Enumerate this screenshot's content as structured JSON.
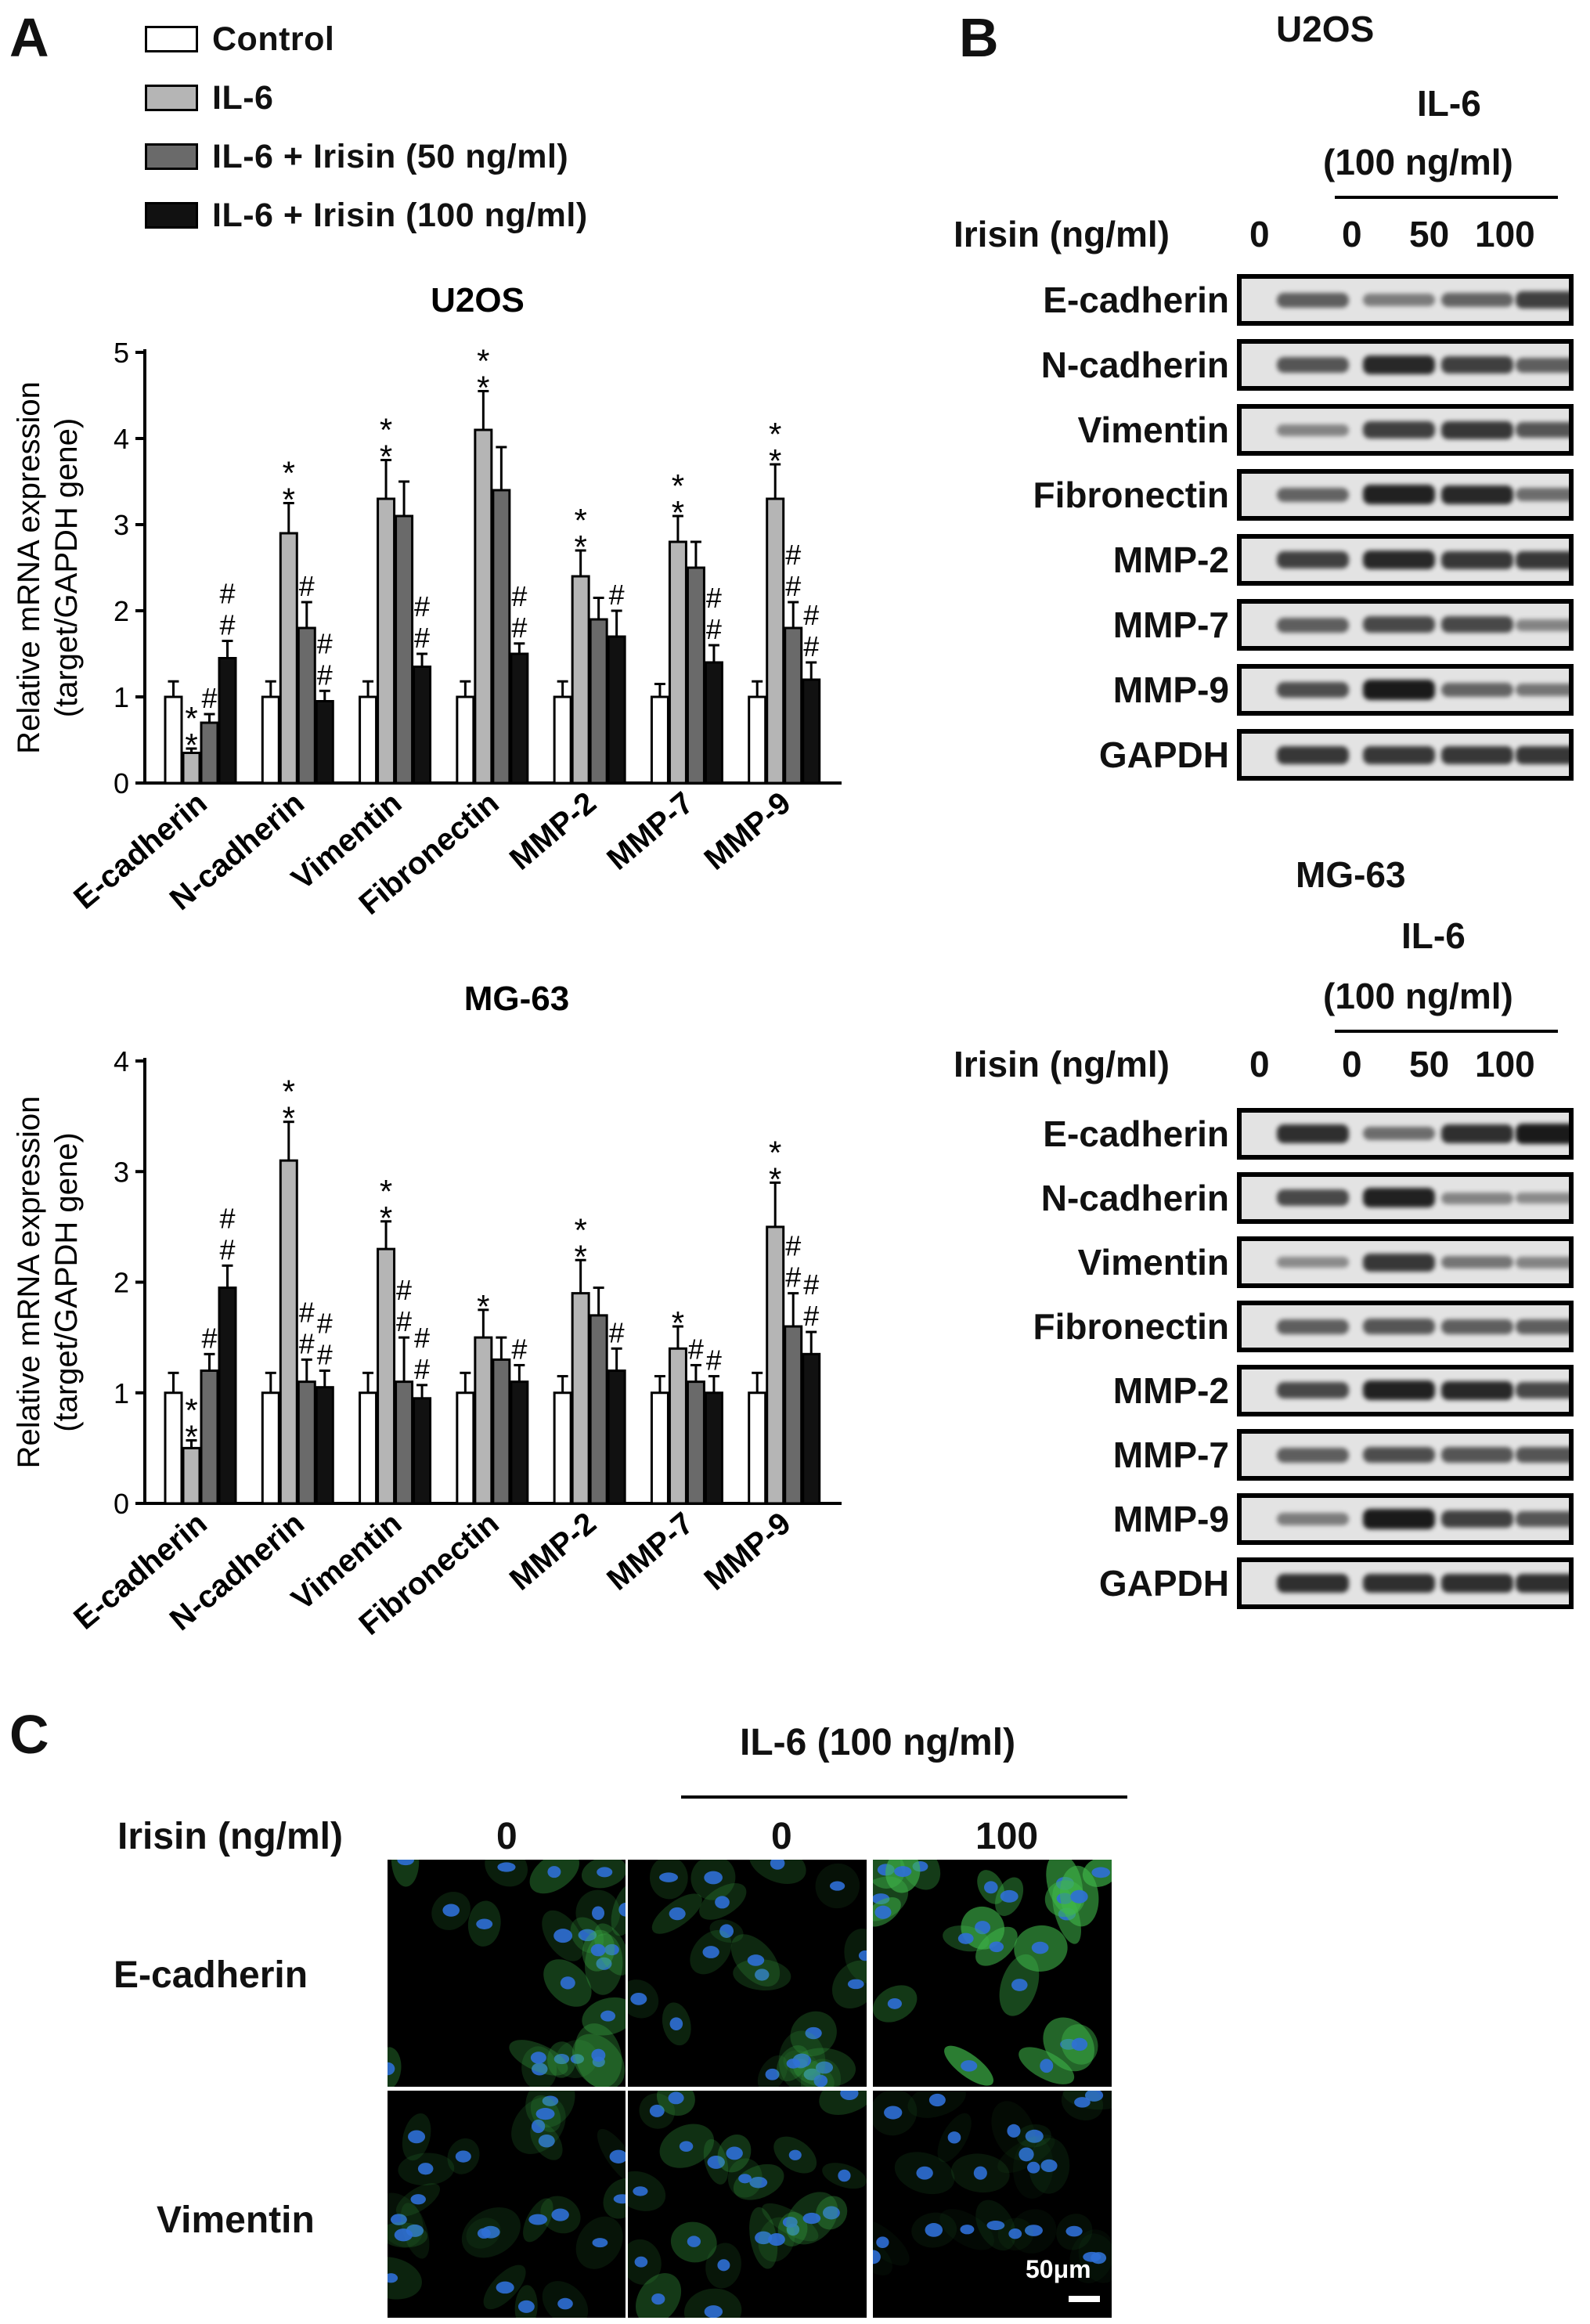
{
  "panels": {
    "a": "A",
    "b": "B",
    "c": "C"
  },
  "legend": [
    {
      "label": "Control",
      "color": "#ffffff"
    },
    {
      "label": "IL-6",
      "color": "#b5b5b5"
    },
    {
      "label": "IL-6 + Irisin  (50 ng/ml)",
      "color": "#6a6a6a"
    },
    {
      "label": "IL-6 + Irisin  (100 ng/ml)",
      "color": "#111111"
    }
  ],
  "chart_data": [
    {
      "type": "bar",
      "title": "U2OS",
      "ylabel": "Relative mRNA expression\n(target/GAPDH gene)",
      "ylabel_lines": [
        "Relative mRNA expression",
        "(target/GAPDH gene)"
      ],
      "ylim": [
        0,
        5
      ],
      "yticks": [
        "0",
        "1",
        "2",
        "3",
        "4",
        "5"
      ],
      "categories": [
        "E-cadherin",
        "N-cadherin",
        "Vimentin",
        "Fibronectin",
        "MMP-2",
        "MMP-7",
        "MMP-9"
      ],
      "series": [
        {
          "name": "Control",
          "values": [
            1.0,
            1.0,
            1.0,
            1.0,
            1.0,
            1.0,
            1.0
          ],
          "err": [
            0.18,
            0.18,
            0.18,
            0.18,
            0.18,
            0.15,
            0.18
          ]
        },
        {
          "name": "IL-6",
          "values": [
            0.35,
            2.9,
            3.3,
            4.1,
            2.4,
            2.8,
            3.3
          ],
          "err": [
            0.05,
            0.35,
            0.45,
            0.45,
            0.3,
            0.3,
            0.4
          ]
        },
        {
          "name": "IL-6 + Irisin  (50 ng/ml)",
          "values": [
            0.7,
            1.8,
            3.1,
            3.4,
            1.9,
            2.5,
            1.8
          ],
          "err": [
            0.1,
            0.3,
            0.4,
            0.5,
            0.25,
            0.3,
            0.3
          ]
        },
        {
          "name": "IL-6 + Irisin  (100 ng/ml)",
          "values": [
            1.45,
            0.95,
            1.35,
            1.5,
            1.7,
            1.4,
            1.2
          ],
          "err": [
            0.2,
            0.12,
            0.15,
            0.12,
            0.3,
            0.2,
            0.2
          ]
        }
      ],
      "annotations": [
        {
          "category": 0,
          "series": 1,
          "text": [
            "*",
            "*"
          ]
        },
        {
          "category": 0,
          "series": 2,
          "text": [
            "#"
          ]
        },
        {
          "category": 0,
          "series": 3,
          "text": [
            "#",
            "#"
          ]
        },
        {
          "category": 1,
          "series": 1,
          "text": [
            "*",
            "*"
          ]
        },
        {
          "category": 1,
          "series": 2,
          "text": [
            "#"
          ]
        },
        {
          "category": 1,
          "series": 3,
          "text": [
            "#",
            "#"
          ]
        },
        {
          "category": 2,
          "series": 1,
          "text": [
            "*",
            "*"
          ]
        },
        {
          "category": 2,
          "series": 3,
          "text": [
            "#",
            "#"
          ]
        },
        {
          "category": 3,
          "series": 1,
          "text": [
            "*",
            "*"
          ]
        },
        {
          "category": 3,
          "series": 3,
          "text": [
            "#",
            "#"
          ]
        },
        {
          "category": 4,
          "series": 1,
          "text": [
            "*",
            "*"
          ]
        },
        {
          "category": 4,
          "series": 3,
          "text": [
            "#"
          ]
        },
        {
          "category": 5,
          "series": 1,
          "text": [
            "*",
            "*"
          ]
        },
        {
          "category": 5,
          "series": 3,
          "text": [
            "#",
            "#"
          ]
        },
        {
          "category": 6,
          "series": 1,
          "text": [
            "*",
            "*"
          ]
        },
        {
          "category": 6,
          "series": 2,
          "text": [
            "#",
            "#"
          ]
        },
        {
          "category": 6,
          "series": 3,
          "text": [
            "#",
            "#"
          ]
        }
      ]
    },
    {
      "type": "bar",
      "title": "MG-63",
      "ylabel": "Relative mRNA expression\n(target/GAPDH gene)",
      "ylabel_lines": [
        "Relative mRNA expression",
        "(target/GAPDH gene)"
      ],
      "ylim": [
        0,
        4
      ],
      "yticks": [
        "0",
        "1",
        "2",
        "3",
        "4"
      ],
      "categories": [
        "E-cadherin",
        "N-cadherin",
        "Vimentin",
        "Fibronectin",
        "MMP-2",
        "MMP-7",
        "MMP-9"
      ],
      "series": [
        {
          "name": "Control",
          "values": [
            1.0,
            1.0,
            1.0,
            1.0,
            1.0,
            1.0,
            1.0
          ],
          "err": [
            0.18,
            0.18,
            0.18,
            0.18,
            0.15,
            0.15,
            0.18
          ]
        },
        {
          "name": "IL-6",
          "values": [
            0.5,
            3.1,
            2.3,
            1.5,
            1.9,
            1.4,
            2.5
          ],
          "err": [
            0.07,
            0.35,
            0.25,
            0.25,
            0.3,
            0.2,
            0.4
          ]
        },
        {
          "name": "IL-6 + Irisin  (50 ng/ml)",
          "values": [
            1.2,
            1.1,
            1.1,
            1.3,
            1.7,
            1.1,
            1.6
          ],
          "err": [
            0.15,
            0.2,
            0.4,
            0.2,
            0.25,
            0.15,
            0.3
          ]
        },
        {
          "name": "IL-6 + Irisin  (100 ng/ml)",
          "values": [
            1.95,
            1.05,
            0.95,
            1.1,
            1.2,
            1.0,
            1.35
          ],
          "err": [
            0.2,
            0.15,
            0.12,
            0.15,
            0.2,
            0.15,
            0.2
          ]
        }
      ],
      "annotations": [
        {
          "category": 0,
          "series": 1,
          "text": [
            "*",
            "*"
          ]
        },
        {
          "category": 0,
          "series": 2,
          "text": [
            "#"
          ]
        },
        {
          "category": 0,
          "series": 3,
          "text": [
            "#",
            "#"
          ]
        },
        {
          "category": 1,
          "series": 1,
          "text": [
            "*",
            "*"
          ]
        },
        {
          "category": 1,
          "series": 2,
          "text": [
            "#",
            "#"
          ]
        },
        {
          "category": 1,
          "series": 3,
          "text": [
            "#",
            "#"
          ]
        },
        {
          "category": 2,
          "series": 1,
          "text": [
            "*",
            "*"
          ]
        },
        {
          "category": 2,
          "series": 2,
          "text": [
            "#",
            "#"
          ]
        },
        {
          "category": 2,
          "series": 3,
          "text": [
            "#",
            "#"
          ]
        },
        {
          "category": 3,
          "series": 1,
          "text": [
            "*"
          ]
        },
        {
          "category": 3,
          "series": 3,
          "text": [
            "#"
          ]
        },
        {
          "category": 4,
          "series": 1,
          "text": [
            "*",
            "*"
          ]
        },
        {
          "category": 4,
          "series": 3,
          "text": [
            "#"
          ]
        },
        {
          "category": 5,
          "series": 1,
          "text": [
            "*"
          ]
        },
        {
          "category": 5,
          "series": 2,
          "text": [
            "#"
          ]
        },
        {
          "category": 5,
          "series": 3,
          "text": [
            "#"
          ]
        },
        {
          "category": 6,
          "series": 1,
          "text": [
            "*",
            "*"
          ]
        },
        {
          "category": 6,
          "series": 2,
          "text": [
            "#",
            "#"
          ]
        },
        {
          "category": 6,
          "series": 3,
          "text": [
            "#",
            "#"
          ]
        }
      ]
    }
  ],
  "western": {
    "u2os": {
      "cell_line": "U2OS",
      "treatment": "IL-6",
      "treatment_dose": "(100 ng/ml)",
      "irisin_label": "Irisin (ng/ml)",
      "lanes": [
        "0",
        "0",
        "50",
        "100"
      ],
      "rows": [
        {
          "label": "E-cadherin",
          "intensity": [
            0.55,
            0.35,
            0.5,
            0.75
          ]
        },
        {
          "label": "N-cadherin",
          "intensity": [
            0.6,
            0.9,
            0.75,
            0.55
          ]
        },
        {
          "label": "Vimentin",
          "intensity": [
            0.3,
            0.75,
            0.8,
            0.6
          ]
        },
        {
          "label": "Fibronectin",
          "intensity": [
            0.5,
            0.95,
            0.9,
            0.45
          ]
        },
        {
          "label": "MMP-2",
          "intensity": [
            0.75,
            0.9,
            0.8,
            0.8
          ]
        },
        {
          "label": "MMP-7",
          "intensity": [
            0.55,
            0.7,
            0.7,
            0.3
          ]
        },
        {
          "label": "MMP-9",
          "intensity": [
            0.65,
            1.0,
            0.5,
            0.4
          ]
        },
        {
          "label": "GAPDH",
          "intensity": [
            0.8,
            0.8,
            0.8,
            0.8
          ]
        }
      ]
    },
    "mg63": {
      "cell_line": "MG-63",
      "treatment": "IL-6",
      "treatment_dose": "(100 ng/ml)",
      "irisin_label": "Irisin (ng/ml)",
      "lanes": [
        "0",
        "0",
        "50",
        "100"
      ],
      "rows": [
        {
          "label": "E-cadherin",
          "intensity": [
            0.85,
            0.45,
            0.85,
            1.0
          ]
        },
        {
          "label": "N-cadherin",
          "intensity": [
            0.7,
            0.95,
            0.3,
            0.25
          ]
        },
        {
          "label": "Vimentin",
          "intensity": [
            0.25,
            0.8,
            0.4,
            0.3
          ]
        },
        {
          "label": "Fibronectin",
          "intensity": [
            0.55,
            0.6,
            0.55,
            0.55
          ]
        },
        {
          "label": "MMP-2",
          "intensity": [
            0.7,
            0.95,
            0.9,
            0.7
          ]
        },
        {
          "label": "MMP-7",
          "intensity": [
            0.55,
            0.65,
            0.6,
            0.6
          ]
        },
        {
          "label": "MMP-9",
          "intensity": [
            0.35,
            1.0,
            0.75,
            0.6
          ]
        },
        {
          "label": "GAPDH",
          "intensity": [
            0.85,
            0.85,
            0.85,
            0.85
          ]
        }
      ]
    }
  },
  "immunofluorescence": {
    "treatment": "IL-6  (100 ng/ml)",
    "irisin_label": "Irisin (ng/ml)",
    "columns": [
      "0",
      "0",
      "100"
    ],
    "rows": [
      "E-cadherin",
      "Vimentin"
    ],
    "scale_bar": "50μm",
    "colors": {
      "nuclei": "#2f6fd6",
      "stain": "#3fb84a",
      "background": "#000000"
    }
  }
}
